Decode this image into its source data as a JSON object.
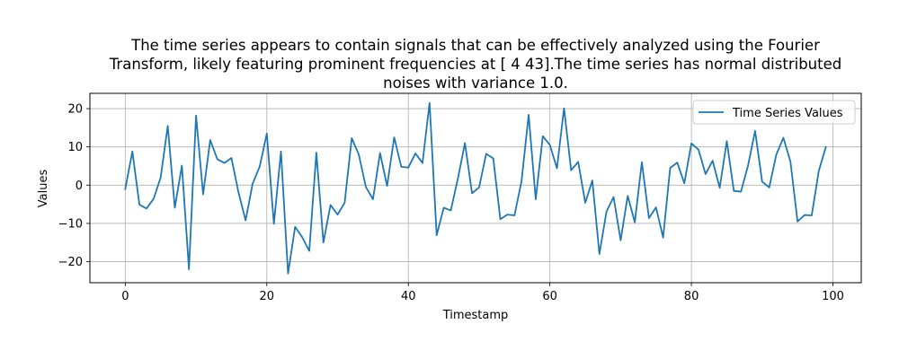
{
  "chart_data": {
    "type": "line",
    "title_lines": [
      "The time series appears to contain signals that can be effectively analyzed using the Fourier",
      "Transform, likely featuring prominent frequencies at [ 4 43].The time series has normal distributed",
      "noises with variance 1.0."
    ],
    "xlabel": "Timestamp",
    "ylabel": "Values",
    "xlim": [
      -5,
      104
    ],
    "ylim": [
      -25.5,
      24
    ],
    "xticks": [
      0,
      20,
      40,
      60,
      80,
      100
    ],
    "yticks": [
      -20,
      -10,
      0,
      10,
      20
    ],
    "xtick_labels": [
      "0",
      "20",
      "40",
      "60",
      "80",
      "100"
    ],
    "ytick_labels": [
      "−20",
      "−10",
      "0",
      "10",
      "20"
    ],
    "grid": true,
    "legend_position": "upper right",
    "series": [
      {
        "name": "Time Series Values",
        "color": "#1f77b4",
        "x": [
          0,
          1,
          2,
          3,
          4,
          5,
          6,
          7,
          8,
          9,
          10,
          11,
          12,
          13,
          14,
          15,
          16,
          17,
          18,
          19,
          20,
          21,
          22,
          23,
          24,
          25,
          26,
          27,
          28,
          29,
          30,
          31,
          32,
          33,
          34,
          35,
          36,
          37,
          38,
          39,
          40,
          41,
          42,
          43,
          44,
          45,
          46,
          47,
          48,
          49,
          50,
          51,
          52,
          53,
          54,
          55,
          56,
          57,
          58,
          59,
          60,
          61,
          62,
          63,
          64,
          65,
          66,
          67,
          68,
          69,
          70,
          71,
          72,
          73,
          74,
          75,
          76,
          77,
          78,
          79,
          80,
          81,
          82,
          83,
          84,
          85,
          86,
          87,
          88,
          89,
          90,
          91,
          92,
          93,
          94,
          95,
          96,
          97,
          98,
          99
        ],
        "values": [
          -1.0,
          8.8,
          -5.1,
          -6.1,
          -3.6,
          2.0,
          15.5,
          -5.9,
          5.1,
          -22.0,
          18.2,
          -2.4,
          11.8,
          6.8,
          5.8,
          7.1,
          -1.9,
          -9.2,
          0.4,
          4.9,
          13.5,
          -10.1,
          8.8,
          -23.1,
          -10.9,
          -13.6,
          -17.2,
          8.5,
          -15.0,
          -5.2,
          -7.7,
          -4.6,
          12.3,
          8.0,
          -0.5,
          -3.7,
          8.4,
          -0.2,
          12.5,
          4.8,
          4.6,
          8.3,
          5.8,
          21.5,
          -13.1,
          -5.9,
          -6.6,
          1.7,
          11.0,
          -2.1,
          -0.6,
          8.2,
          7.0,
          -8.9,
          -7.7,
          -7.9,
          1.1,
          18.4,
          -3.7,
          12.8,
          10.5,
          4.4,
          20.1,
          3.9,
          6.1,
          -4.6,
          1.2,
          -18.0,
          -6.9,
          -3.1,
          -14.4,
          -2.8,
          -9.7,
          6.0,
          -8.6,
          -5.8,
          -13.7,
          4.5,
          5.9,
          0.5,
          10.9,
          9.3,
          2.9,
          6.4,
          -0.7,
          11.5,
          -1.5,
          -1.7,
          5.1,
          14.2,
          0.9,
          -0.6,
          8.0,
          12.4,
          6.1,
          -9.5,
          -7.8,
          -7.9,
          3.7,
          10.0
        ]
      }
    ]
  }
}
